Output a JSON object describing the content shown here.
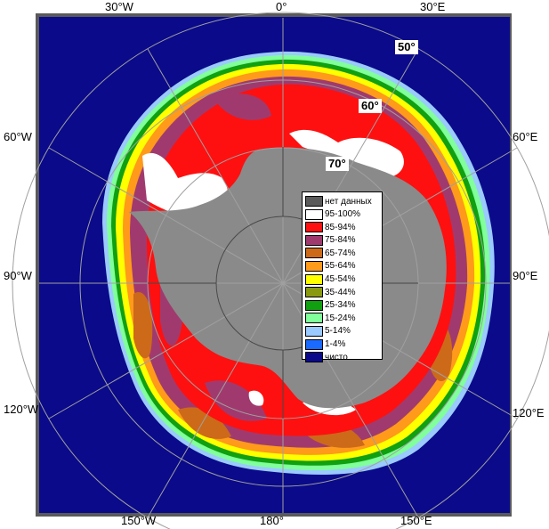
{
  "lon_labels": {
    "top": [
      "30°W",
      "0°",
      "30°E"
    ],
    "left": [
      "60°W",
      "90°W",
      "120°W"
    ],
    "right": [
      "60°E",
      "90°E",
      "120°E"
    ],
    "bottom": [
      "150°W",
      "180°",
      "150°E"
    ]
  },
  "lat_labels": [
    "50°",
    "60°",
    "70°"
  ],
  "legend": {
    "items": [
      {
        "label": "нет данных",
        "color": "#5a5a5a"
      },
      {
        "label": "95-100%",
        "color": "#ffffff"
      },
      {
        "label": "85-94%",
        "color": "#ff1010"
      },
      {
        "label": "75-84%",
        "color": "#a03a6e"
      },
      {
        "label": "65-74%",
        "color": "#cc6a1a"
      },
      {
        "label": "55-64%",
        "color": "#ff9a1a"
      },
      {
        "label": "45-54%",
        "color": "#ffff00"
      },
      {
        "label": "35-44%",
        "color": "#8a9a10"
      },
      {
        "label": "25-34%",
        "color": "#10a010"
      },
      {
        "label": "15-24%",
        "color": "#80ff9a"
      },
      {
        "label": "5-14%",
        "color": "#9acaff"
      },
      {
        "label": "1-4%",
        "color": "#1a6aff"
      },
      {
        "label": "чисто",
        "color": "#0a0a8a"
      }
    ]
  },
  "colors": {
    "ocean": "#0a0a8a",
    "land": "#8a8a8a",
    "frame": "#5a5a5a",
    "grid": "#a0a0a0"
  }
}
